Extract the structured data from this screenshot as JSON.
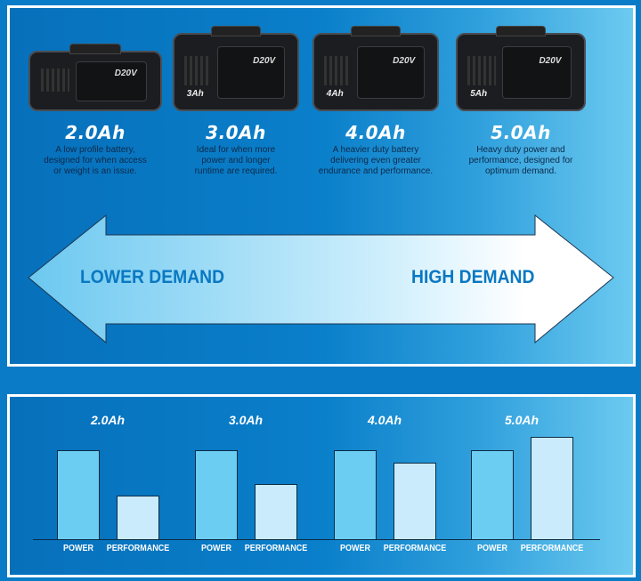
{
  "batteries": [
    {
      "name": "2.0Ah",
      "badge": "",
      "desc": [
        "A low profile battery,",
        "designed for when access",
        "or weight is an issue."
      ]
    },
    {
      "name": "3.0Ah",
      "badge": "3Ah",
      "desc": [
        "Ideal for when more",
        "power and longer",
        "runtime are required."
      ]
    },
    {
      "name": "4.0Ah",
      "badge": "4Ah",
      "desc": [
        "A heavier duty battery",
        "delivering even greater",
        "endurance and performance."
      ]
    },
    {
      "name": "5.0Ah",
      "badge": "5Ah",
      "desc": [
        "Heavy duty power and",
        "performance, designed for",
        "optimum demand."
      ]
    }
  ],
  "brand_logo": "D20V",
  "arrow": {
    "left_label": "LOWER DEMAND",
    "right_label": "HIGH DEMAND"
  },
  "colors": {
    "background": "#0a7bc6",
    "power_bar": "#6ccdf2",
    "performance_bar": "#c9ebfb",
    "arrow_left": "#6cc8f0",
    "arrow_right": "#ffffff"
  },
  "chart_data": {
    "type": "bar",
    "categories": [
      "2.0Ah",
      "3.0Ah",
      "4.0Ah",
      "5.0Ah"
    ],
    "series": [
      {
        "name": "POWER",
        "values": [
          100,
          100,
          100,
          100
        ]
      },
      {
        "name": "PERFORMANCE",
        "values": [
          49,
          62,
          86,
          115
        ]
      }
    ],
    "axes": "none",
    "grid": false,
    "legend": "none"
  }
}
